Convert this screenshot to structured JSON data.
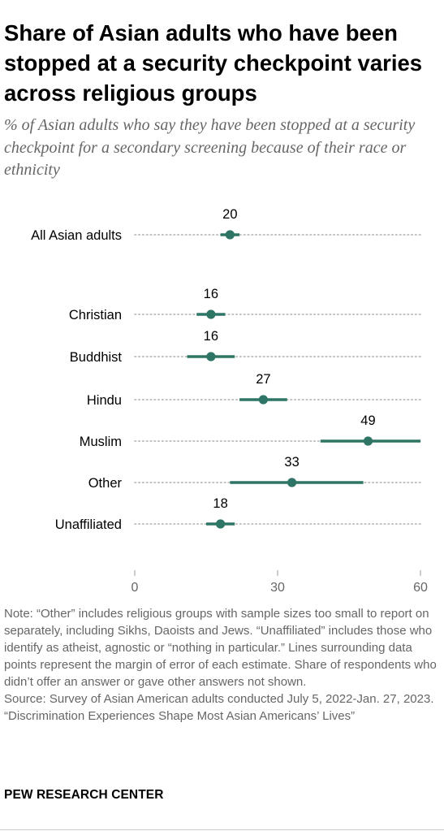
{
  "title": "Share of Asian adults who have been stopped at a security checkpoint varies across religious groups",
  "subtitle": "% of Asian adults who say they have been stopped at a security checkpoint for a secondary screening because of their race or ethnicity",
  "chart_data": {
    "type": "scatter",
    "categories": [
      "All Asian adults",
      "Christian",
      "Buddhist",
      "Hindu",
      "Muslim",
      "Other",
      "Unaffiliated"
    ],
    "values": [
      20,
      16,
      16,
      27,
      49,
      33,
      18
    ],
    "error_ranges": [
      [
        18,
        22
      ],
      [
        13,
        19
      ],
      [
        11,
        21
      ],
      [
        22,
        32
      ],
      [
        39,
        60
      ],
      [
        20,
        48
      ],
      [
        15,
        21
      ]
    ],
    "xlim": [
      0,
      60
    ],
    "xticks": [
      0,
      30,
      60
    ],
    "xtick_labels": [
      "0",
      "30",
      "60"
    ],
    "grid": false,
    "colors": {
      "point": "#2f7565",
      "dots": "#b0b0b0",
      "axis": "#9a9a9a"
    }
  },
  "notes": {
    "note": "Note: “Other” includes religious groups with sample sizes too small to report on separately, including Sikhs, Daoists and Jews. “Unaffiliated” includes those who identify as atheist, agnostic or “nothing in particular.” Lines surrounding data points represent the margin of error of each estimate. Share of respondents who didn’t offer an answer or gave other answers not shown.",
    "source": "Source: Survey of Asian American adults conducted July 5, 2022-Jan. 27, 2023.",
    "report": "“Discrimination Experiences Shape Most Asian Americans’ Lives”"
  },
  "brand": "PEW RESEARCH CENTER"
}
